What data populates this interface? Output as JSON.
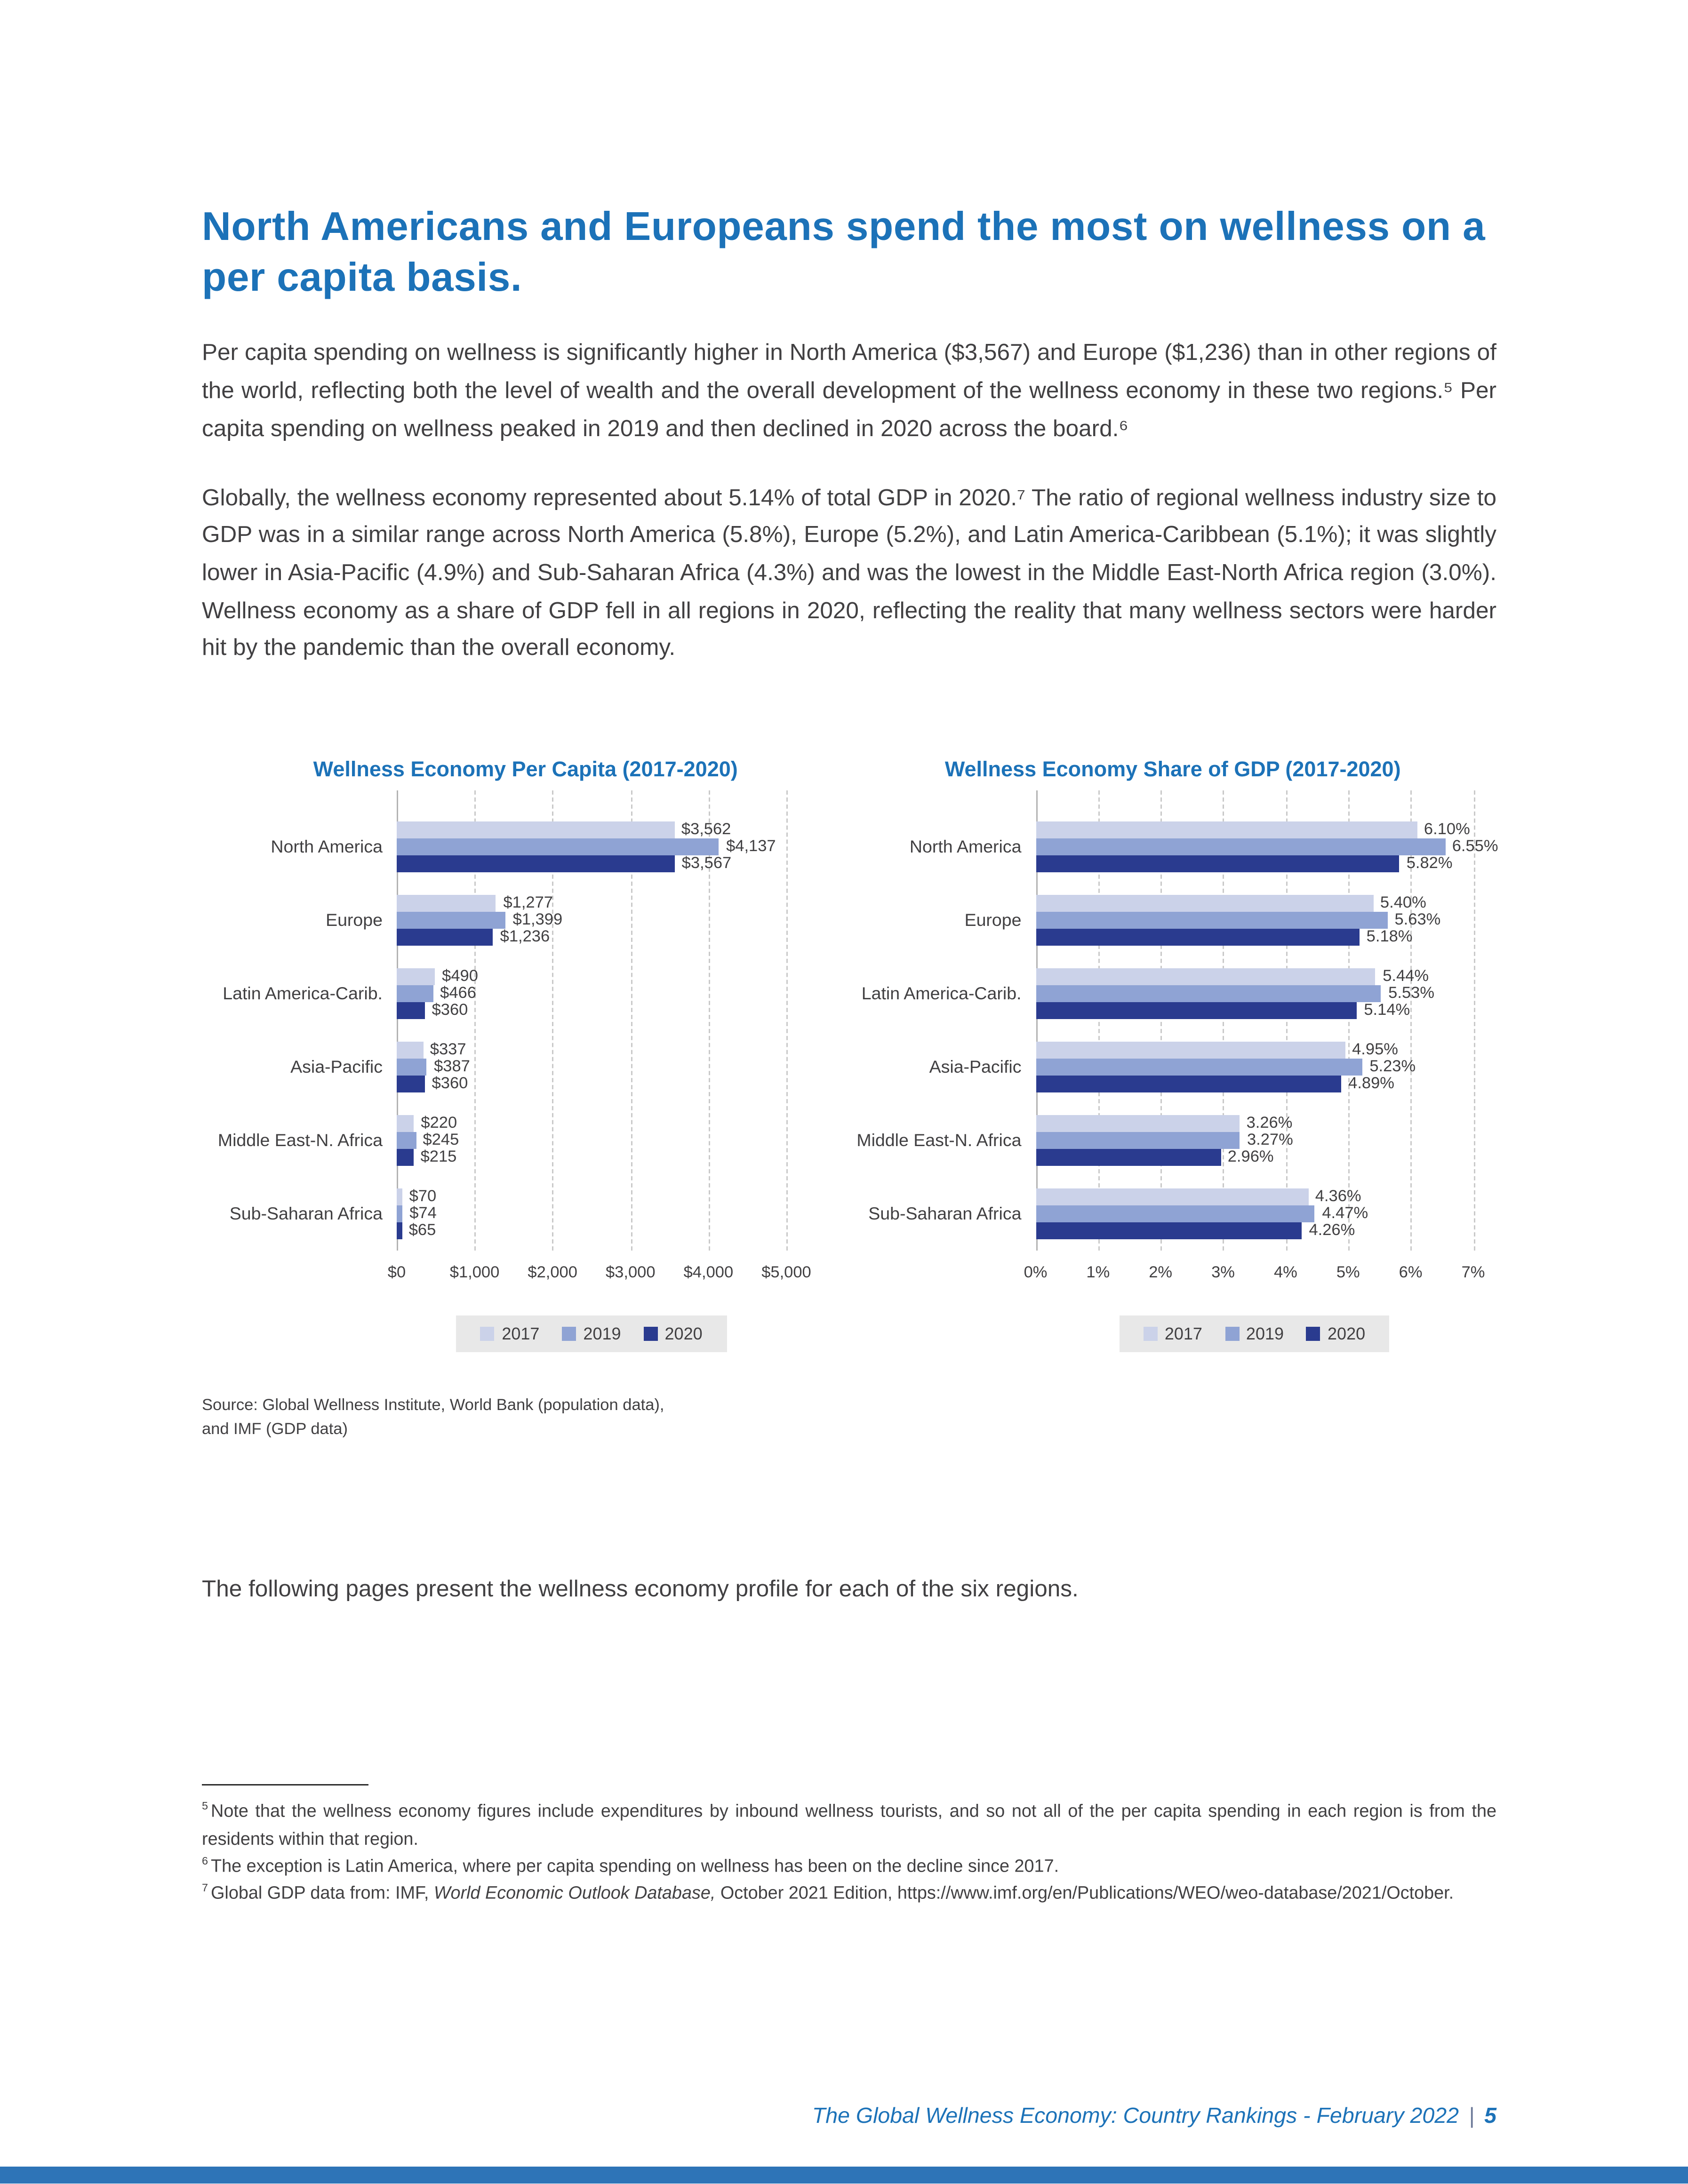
{
  "page": {
    "title": "North Americans and Europeans spend the most on wellness on a per capita basis.",
    "paragraphs": [
      "Per capita spending on wellness is significantly higher in North America ($3,567) and Europe ($1,236) than in other regions of the world, reflecting both the level of wealth and the overall development of the wellness economy in these two regions.⁵ Per capita spending on wellness peaked in 2019 and then declined in 2020 across the board.⁶",
      "Globally, the wellness economy represented about 5.14% of total GDP in 2020.⁷ The ratio of regional wellness industry size to GDP was in a similar range across North America (5.8%), Europe (5.2%), and Latin America-Caribbean (5.1%); it was slightly lower in Asia-Pacific (4.9%) and Sub-Saharan Africa (4.3%) and was the lowest in the Middle East-North Africa region (3.0%). Wellness economy as a share of GDP fell in all regions in 2020, reflecting the reality that many wellness sectors were harder hit by the pandemic than the overall economy."
    ],
    "source_note": {
      "line1": "Source: Global Wellness Institute, World Bank (population data),",
      "line2": "and IMF (GDP data)"
    },
    "following_text": "The following pages present the wellness economy profile for each of the six regions.",
    "footnotes": {
      "fn5": {
        "marker": "5",
        "text": "Note that the wellness economy figures include expenditures by inbound wellness tourists, and so not all of the per capita spending in each region is from the residents within that region."
      },
      "fn6": {
        "marker": "6",
        "text": "The exception is Latin America, where per capita spending on wellness has been on the decline since 2017."
      },
      "fn7": {
        "marker": "7",
        "pre": "Global GDP data from: IMF, ",
        "italic": "World Economic Outlook Database,",
        "post": " October 2021 Edition, https://www.imf.org/en/Publications/WEO/weo-database/2021/October."
      }
    },
    "footer": {
      "text": "The Global Wellness Economy: Country Rankings - February 2022",
      "separator": "|",
      "page_number": "5"
    }
  },
  "colors": {
    "accent_blue": "#1C72B8",
    "bar_2017": "#CBD2E9",
    "bar_2019": "#8FA3D4",
    "bar_2020": "#2A3B8F",
    "legend_background": "#E8E8E8",
    "footer_bar_blue": "#2E74B7",
    "body_text": "#414042"
  },
  "chart_data": [
    {
      "type": "bar",
      "orientation": "horizontal",
      "title": "Wellness Economy Per Capita (2017-2020)",
      "categories": [
        "North America",
        "Europe",
        "Latin America-Carib.",
        "Asia-Pacific",
        "Middle East-N. Africa",
        "Sub-Saharan Africa"
      ],
      "series": [
        {
          "name": "2017",
          "color": "#CBD2E9",
          "values": [
            3562,
            1277,
            490,
            337,
            220,
            70
          ],
          "labels": [
            "$3,562",
            "$1,277",
            "$490",
            "$337",
            "$220",
            "$70"
          ]
        },
        {
          "name": "2019",
          "color": "#8FA3D4",
          "values": [
            4137,
            1399,
            466,
            387,
            245,
            74
          ],
          "labels": [
            "$4,137",
            "$1,399",
            "$466",
            "$387",
            "$245",
            "$74"
          ]
        },
        {
          "name": "2020",
          "color": "#2A3B8F",
          "values": [
            3567,
            1236,
            360,
            360,
            215,
            65
          ],
          "labels": [
            "$3,567",
            "$1,236",
            "$360",
            "$360",
            "$215",
            "$65"
          ]
        }
      ],
      "xlim": [
        0,
        5000
      ],
      "ticks": [
        {
          "v": 0,
          "label": "$0"
        },
        {
          "v": 1000,
          "label": "$1,000"
        },
        {
          "v": 2000,
          "label": "$2,000"
        },
        {
          "v": 3000,
          "label": "$3,000"
        },
        {
          "v": 4000,
          "label": "$4,000"
        },
        {
          "v": 5000,
          "label": "$5,000"
        }
      ],
      "legend": [
        "2017",
        "2019",
        "2020"
      ],
      "grid": "dashed-vertical",
      "legend_position": "bottom-center"
    },
    {
      "type": "bar",
      "orientation": "horizontal",
      "title": "Wellness Economy Share of GDP (2017-2020)",
      "categories": [
        "North America",
        "Europe",
        "Latin America-Carib.",
        "Asia-Pacific",
        "Middle East-N. Africa",
        "Sub-Saharan Africa"
      ],
      "series": [
        {
          "name": "2017",
          "color": "#CBD2E9",
          "values": [
            6.1,
            5.4,
            5.44,
            4.95,
            3.26,
            4.36
          ],
          "labels": [
            "6.10%",
            "5.40%",
            "5.44%",
            "4.95%",
            "3.26%",
            "4.36%"
          ]
        },
        {
          "name": "2019",
          "color": "#8FA3D4",
          "values": [
            6.55,
            5.63,
            5.53,
            5.23,
            3.27,
            4.47
          ],
          "labels": [
            "6.55%",
            "5.63%",
            "5.53%",
            "5.23%",
            "3.27%",
            "4.47%"
          ]
        },
        {
          "name": "2020",
          "color": "#2A3B8F",
          "values": [
            5.82,
            5.18,
            5.14,
            4.89,
            2.96,
            4.26
          ],
          "labels": [
            "5.82%",
            "5.18%",
            "5.14%",
            "4.89%",
            "2.96%",
            "4.26%"
          ]
        }
      ],
      "xlim": [
        0,
        7
      ],
      "ticks": [
        {
          "v": 0,
          "label": "0%"
        },
        {
          "v": 1,
          "label": "1%"
        },
        {
          "v": 2,
          "label": "2%"
        },
        {
          "v": 3,
          "label": "3%"
        },
        {
          "v": 4,
          "label": "4%"
        },
        {
          "v": 5,
          "label": "5%"
        },
        {
          "v": 6,
          "label": "6%"
        },
        {
          "v": 7,
          "label": "7%"
        }
      ],
      "legend": [
        "2017",
        "2019",
        "2020"
      ],
      "grid": "dashed-vertical",
      "legend_position": "bottom-center"
    }
  ]
}
